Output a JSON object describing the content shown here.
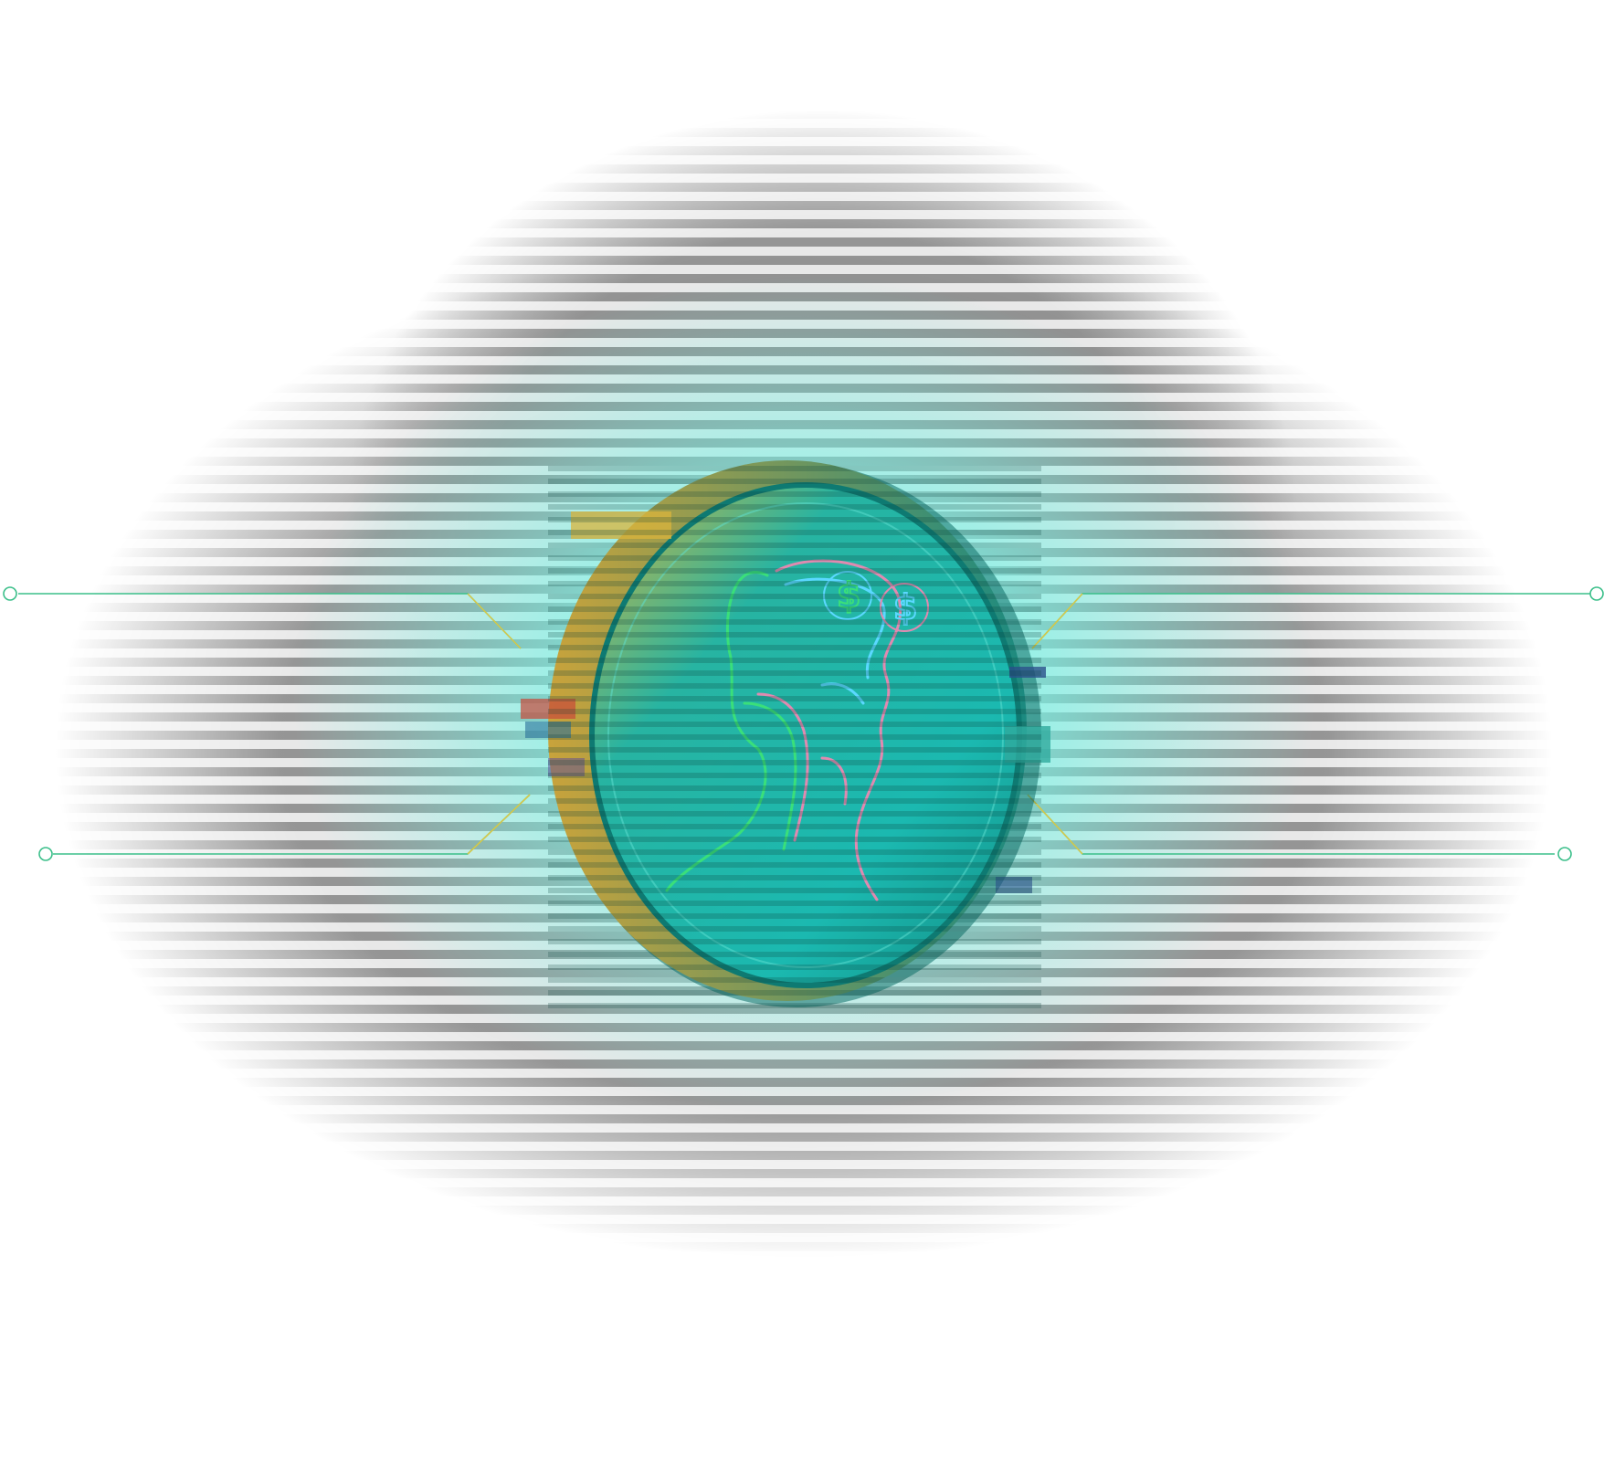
{
  "colors": {
    "background": "#ffffff",
    "glow": "#7ff3e6",
    "stripe_dark": "#8a8a8a",
    "stripe_light": "#e6e6e6",
    "coin_teal": "#18b8a8",
    "coin_gold": "#c9b23a",
    "circuit_green": "#3bbf8a",
    "circuit_yellow": "#d8c84a"
  },
  "icons": {
    "coin": "coin-icon",
    "face": "face-profile-icon",
    "dollar": "dollar-sign-icon",
    "node": "circuit-node-icon"
  },
  "coin_symbols": {
    "left_eye": "$",
    "right_eye": "$"
  }
}
